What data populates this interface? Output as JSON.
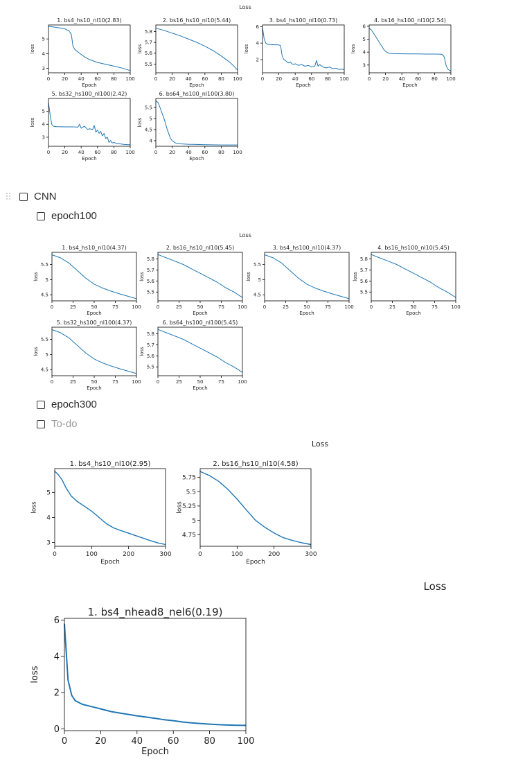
{
  "colors": {
    "line": "#1f77b4",
    "axis": "#000000",
    "text": "#222222"
  },
  "icons": {
    "drag": "drag-handle-icon",
    "checkbox": "checkbox-icon"
  },
  "todos": {
    "cnn": "CNN",
    "epoch100": "epoch100",
    "epoch300": "epoch300",
    "placeholder": "To-do"
  },
  "chart_data": [
    {
      "type": "line",
      "title": "Loss",
      "panels": [
        {
          "title": "1. bs4_hs10_nl10(2.83)",
          "xlabel": "Epoch",
          "ylabel": "loss",
          "xlim": [
            0,
            100
          ],
          "ylim": [
            2.7,
            5.95
          ],
          "xticks": [
            0,
            20,
            40,
            60,
            80,
            100
          ],
          "yticks": [
            3,
            4,
            5
          ],
          "x": [
            0,
            5,
            10,
            15,
            20,
            25,
            28,
            30,
            32,
            35,
            40,
            45,
            50,
            55,
            60,
            70,
            80,
            90,
            100
          ],
          "y": [
            5.85,
            5.82,
            5.78,
            5.74,
            5.68,
            5.55,
            5.3,
            4.5,
            4.3,
            4.15,
            3.95,
            3.75,
            3.6,
            3.5,
            3.4,
            3.28,
            3.15,
            3.02,
            2.85
          ]
        },
        {
          "title": "2. bs16_hs10_nl10(5.44)",
          "xlabel": "Epoch",
          "ylabel": "loss",
          "xlim": [
            0,
            100
          ],
          "ylim": [
            5.42,
            5.86
          ],
          "xticks": [
            0,
            20,
            40,
            60,
            80,
            100
          ],
          "yticks": [
            5.5,
            5.6,
            5.7,
            5.8
          ],
          "x": [
            0,
            10,
            20,
            30,
            40,
            50,
            60,
            70,
            80,
            90,
            95,
            100
          ],
          "y": [
            5.83,
            5.81,
            5.785,
            5.76,
            5.73,
            5.7,
            5.665,
            5.625,
            5.575,
            5.52,
            5.485,
            5.445
          ]
        },
        {
          "title": "3. bs4_hs100_nl10(0.73)",
          "xlabel": "Epoch",
          "ylabel": "loss",
          "xlim": [
            0,
            100
          ],
          "ylim": [
            0.4,
            6.2
          ],
          "xticks": [
            0,
            20,
            40,
            60,
            80,
            100
          ],
          "yticks": [
            2,
            4,
            6
          ],
          "x": [
            0,
            2,
            4,
            6,
            10,
            15,
            20,
            22,
            24,
            26,
            28,
            30,
            32,
            34,
            36,
            38,
            40,
            44,
            48,
            52,
            56,
            60,
            64,
            66,
            68,
            70,
            74,
            78,
            82,
            86,
            90,
            94,
            98,
            100
          ],
          "y": [
            5.9,
            4.5,
            4.0,
            3.85,
            3.82,
            3.8,
            3.78,
            3.7,
            2.5,
            2.0,
            1.9,
            1.7,
            1.6,
            1.7,
            1.5,
            1.4,
            1.5,
            1.3,
            1.4,
            1.2,
            1.3,
            1.1,
            1.2,
            1.9,
            1.2,
            1.4,
            1.1,
            1.0,
            1.1,
            0.9,
            0.95,
            0.8,
            0.85,
            0.73
          ]
        },
        {
          "title": "4. bs16_hs100_nl10(2.54)",
          "xlabel": "Epoch",
          "ylabel": "loss",
          "xlim": [
            0,
            100
          ],
          "ylim": [
            2.4,
            6.1
          ],
          "xticks": [
            0,
            20,
            40,
            60,
            80,
            100
          ],
          "yticks": [
            3,
            4,
            5,
            6
          ],
          "x": [
            0,
            3,
            6,
            10,
            14,
            18,
            20,
            24,
            30,
            40,
            50,
            60,
            70,
            80,
            88,
            90,
            92,
            94,
            96,
            98,
            100
          ],
          "y": [
            5.85,
            5.7,
            5.4,
            5.0,
            4.6,
            4.2,
            4.05,
            3.92,
            3.88,
            3.87,
            3.86,
            3.86,
            3.85,
            3.85,
            3.84,
            3.8,
            3.6,
            3.0,
            2.7,
            2.6,
            2.54
          ]
        },
        {
          "title": "5. bs32_hs100_nl100(2.42)",
          "xlabel": "Epoch",
          "ylabel": "loss",
          "xlim": [
            0,
            100
          ],
          "ylim": [
            2.3,
            6.0
          ],
          "xticks": [
            0,
            20,
            40,
            60,
            80,
            100
          ],
          "yticks": [
            3,
            4,
            5
          ],
          "x": [
            0,
            2,
            4,
            6,
            10,
            20,
            30,
            36,
            38,
            40,
            44,
            48,
            50,
            54,
            56,
            58,
            60,
            62,
            64,
            66,
            68,
            70,
            72,
            74,
            76,
            78,
            80,
            84,
            88,
            92,
            96,
            100
          ],
          "y": [
            5.7,
            4.7,
            4.0,
            3.85,
            3.82,
            3.8,
            3.8,
            3.78,
            4.0,
            3.7,
            3.85,
            3.6,
            3.65,
            3.6,
            3.9,
            3.4,
            3.55,
            3.3,
            3.45,
            3.1,
            3.3,
            2.9,
            3.0,
            2.6,
            2.75,
            2.55,
            2.6,
            2.5,
            2.48,
            2.45,
            2.43,
            2.42
          ]
        },
        {
          "title": "6. bs64_hs100_nl100(3.80)",
          "xlabel": "Epoch",
          "ylabel": "loss",
          "xlim": [
            0,
            100
          ],
          "ylim": [
            3.75,
            5.9
          ],
          "xticks": [
            0,
            20,
            40,
            60,
            80,
            100
          ],
          "yticks": [
            4.0,
            4.5,
            5.0,
            5.5
          ],
          "x": [
            0,
            3,
            6,
            10,
            14,
            18,
            20,
            24,
            30,
            40,
            50,
            60,
            80,
            100
          ],
          "y": [
            5.8,
            5.7,
            5.4,
            5.0,
            4.5,
            4.1,
            4.0,
            3.9,
            3.86,
            3.84,
            3.83,
            3.82,
            3.81,
            3.81
          ]
        }
      ]
    },
    {
      "type": "line",
      "title": "Loss",
      "panels": [
        {
          "title": "1. bs4_hs10_nl10(4.37)",
          "xlabel": "Epoch",
          "ylabel": "loss",
          "xlim": [
            0,
            100
          ],
          "ylim": [
            4.3,
            5.9
          ],
          "xticks": [
            0,
            25,
            50,
            75,
            100
          ],
          "yticks": [
            4.5,
            5.0,
            5.5
          ],
          "x": [
            0,
            10,
            20,
            30,
            40,
            50,
            60,
            70,
            80,
            90,
            100
          ],
          "y": [
            5.82,
            5.72,
            5.55,
            5.3,
            5.05,
            4.85,
            4.72,
            4.62,
            4.53,
            4.45,
            4.37
          ]
        },
        {
          "title": "2. bs16_hs10_nl10(5.45)",
          "xlabel": "Epoch",
          "ylabel": "loss",
          "xlim": [
            0,
            100
          ],
          "ylim": [
            5.42,
            5.86
          ],
          "xticks": [
            0,
            25,
            50,
            75,
            100
          ],
          "yticks": [
            5.5,
            5.6,
            5.7,
            5.8
          ],
          "x": [
            0,
            10,
            20,
            30,
            40,
            50,
            60,
            70,
            80,
            90,
            100
          ],
          "y": [
            5.84,
            5.81,
            5.78,
            5.75,
            5.71,
            5.67,
            5.63,
            5.59,
            5.54,
            5.5,
            5.45
          ]
        },
        {
          "title": "3. bs4_hs100_nl10(4.37)",
          "xlabel": "Epoch",
          "ylabel": "loss",
          "xlim": [
            0,
            100
          ],
          "ylim": [
            4.3,
            5.9
          ],
          "xticks": [
            0,
            25,
            50,
            75,
            100
          ],
          "yticks": [
            4.5,
            5.0,
            5.5
          ],
          "x": [
            0,
            10,
            20,
            30,
            40,
            50,
            60,
            70,
            80,
            90,
            100
          ],
          "y": [
            5.82,
            5.72,
            5.55,
            5.3,
            5.05,
            4.85,
            4.72,
            4.62,
            4.53,
            4.45,
            4.37
          ]
        },
        {
          "title": "4. bs16_hs100_nl10(5.45)",
          "xlabel": "Epoch",
          "ylabel": "loss",
          "xlim": [
            0,
            100
          ],
          "ylim": [
            5.42,
            5.86
          ],
          "xticks": [
            0,
            25,
            50,
            75,
            100
          ],
          "yticks": [
            5.5,
            5.6,
            5.7,
            5.8
          ],
          "x": [
            0,
            10,
            20,
            30,
            40,
            50,
            60,
            70,
            80,
            90,
            100
          ],
          "y": [
            5.84,
            5.81,
            5.78,
            5.75,
            5.71,
            5.67,
            5.63,
            5.59,
            5.54,
            5.5,
            5.45
          ]
        },
        {
          "title": "5. bs32_hs100_nl100(4.37)",
          "xlabel": "Epoch",
          "ylabel": "loss",
          "xlim": [
            0,
            100
          ],
          "ylim": [
            4.3,
            5.9
          ],
          "xticks": [
            0,
            25,
            50,
            75,
            100
          ],
          "yticks": [
            4.5,
            5.0,
            5.5
          ],
          "x": [
            0,
            10,
            20,
            30,
            40,
            50,
            60,
            70,
            80,
            90,
            100
          ],
          "y": [
            5.82,
            5.72,
            5.55,
            5.3,
            5.05,
            4.85,
            4.72,
            4.62,
            4.53,
            4.45,
            4.37
          ]
        },
        {
          "title": "6. bs64_hs100_nl100(5.45)",
          "xlabel": "Epoch",
          "ylabel": "loss",
          "xlim": [
            0,
            100
          ],
          "ylim": [
            5.42,
            5.86
          ],
          "xticks": [
            0,
            25,
            50,
            75,
            100
          ],
          "yticks": [
            5.5,
            5.6,
            5.7,
            5.8
          ],
          "x": [
            0,
            10,
            20,
            30,
            40,
            50,
            60,
            70,
            80,
            90,
            100
          ],
          "y": [
            5.84,
            5.81,
            5.78,
            5.75,
            5.71,
            5.67,
            5.63,
            5.59,
            5.54,
            5.5,
            5.45
          ]
        }
      ]
    },
    {
      "type": "line",
      "title": "Loss",
      "panels": [
        {
          "title": "1. bs4_hs10_nl10(2.95)",
          "xlabel": "Epoch",
          "ylabel": "loss",
          "xlim": [
            0,
            300
          ],
          "ylim": [
            2.85,
            5.95
          ],
          "xticks": [
            0,
            100,
            200,
            300
          ],
          "yticks": [
            3,
            4,
            5
          ],
          "x": [
            0,
            10,
            20,
            30,
            45,
            60,
            80,
            100,
            120,
            140,
            160,
            180,
            200,
            220,
            240,
            260,
            280,
            300
          ],
          "y": [
            5.85,
            5.7,
            5.5,
            5.2,
            4.85,
            4.65,
            4.45,
            4.25,
            4.0,
            3.75,
            3.58,
            3.47,
            3.37,
            3.27,
            3.17,
            3.07,
            2.98,
            2.92
          ]
        },
        {
          "title": "2. bs16_hs10_nl10(4.58)",
          "xlabel": "Epoch",
          "ylabel": "loss",
          "xlim": [
            0,
            300
          ],
          "ylim": [
            4.55,
            5.9
          ],
          "xticks": [
            0,
            100,
            200,
            300
          ],
          "yticks": [
            4.75,
            5.0,
            5.25,
            5.5,
            5.75
          ],
          "x": [
            0,
            25,
            50,
            75,
            100,
            125,
            150,
            175,
            200,
            225,
            250,
            275,
            300
          ],
          "y": [
            5.85,
            5.78,
            5.68,
            5.54,
            5.37,
            5.18,
            5.0,
            4.88,
            4.78,
            4.7,
            4.65,
            4.61,
            4.58
          ]
        }
      ]
    },
    {
      "type": "line",
      "title": "Loss",
      "panels": [
        {
          "title": "1. bs4_nhead8_nel6(0.19)",
          "xlabel": "Epoch",
          "ylabel": "loss",
          "xlim": [
            0,
            100
          ],
          "ylim": [
            -0.1,
            6.1
          ],
          "xticks": [
            0,
            20,
            40,
            60,
            80,
            100
          ],
          "yticks": [
            0,
            2,
            4,
            6
          ],
          "x": [
            0,
            2,
            4,
            6,
            8,
            10,
            14,
            18,
            22,
            26,
            30,
            35,
            40,
            45,
            50,
            55,
            60,
            65,
            70,
            75,
            80,
            85,
            90,
            95,
            100
          ],
          "y": [
            5.8,
            2.7,
            1.85,
            1.55,
            1.45,
            1.35,
            1.25,
            1.15,
            1.05,
            0.95,
            0.88,
            0.8,
            0.72,
            0.65,
            0.58,
            0.5,
            0.45,
            0.38,
            0.33,
            0.29,
            0.26,
            0.23,
            0.21,
            0.2,
            0.19
          ]
        }
      ]
    }
  ]
}
